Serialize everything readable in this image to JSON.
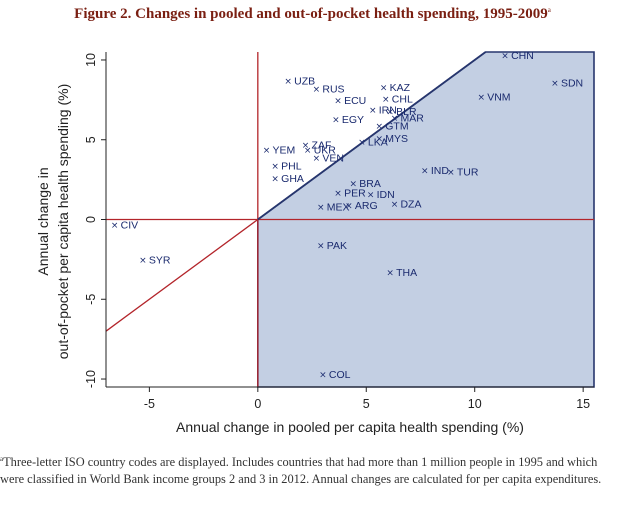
{
  "figure": {
    "title": "Figure 2. Changes in pooled and out-of-pocket health spending, 1995-2009",
    "title_marker": "a"
  },
  "footnote": {
    "marker": "a",
    "text": "Three-letter ISO country codes are displayed. Includes countries that had more than 1 million people in 1995 and which were classified in World Bank income groups 2 and 3 in 2012. Annual changes are calculated for per capita expenditures."
  },
  "colors": {
    "reference_lines": "#b3242a",
    "shaded_region_fill": "#c3cfe3",
    "shaded_region_stroke": "#27366e",
    "points": "#1a2a6e"
  },
  "chart_data": {
    "type": "scatter",
    "xlabel": "Annual change in pooled per capita health spending (%)",
    "ylabel_lines": [
      "Annual change in",
      "out-of-pocket per capita health spending (%)"
    ],
    "xlim": [
      -7,
      15.5
    ],
    "ylim": [
      -10.5,
      10.5
    ],
    "xticks": [
      -5,
      0,
      5,
      10,
      15
    ],
    "yticks": [
      -10,
      -5,
      0,
      5,
      10
    ],
    "reference_lines": {
      "x": 0,
      "y": 0,
      "diagonal": "y = x"
    },
    "shaded_region": "x >= 0 and y <= x",
    "grid": false,
    "legend": "none",
    "points": [
      {
        "label": "CHN",
        "x": 11.4,
        "y": 10.3
      },
      {
        "label": "SDN",
        "x": 13.7,
        "y": 8.6
      },
      {
        "label": "UZB",
        "x": 1.4,
        "y": 8.7
      },
      {
        "label": "RUS",
        "x": 2.7,
        "y": 8.2
      },
      {
        "label": "KAZ",
        "x": 5.8,
        "y": 8.3
      },
      {
        "label": "ECU",
        "x": 3.7,
        "y": 7.5
      },
      {
        "label": "CHL",
        "x": 5.9,
        "y": 7.6
      },
      {
        "label": "IRN",
        "x": 5.3,
        "y": 6.9
      },
      {
        "label": "BLR",
        "x": 6.1,
        "y": 6.8
      },
      {
        "label": "VNM",
        "x": 10.3,
        "y": 7.7
      },
      {
        "label": "MAR",
        "x": 6.3,
        "y": 6.4
      },
      {
        "label": "EGY",
        "x": 3.6,
        "y": 6.3
      },
      {
        "label": "GTM",
        "x": 5.6,
        "y": 5.9
      },
      {
        "label": "MYS",
        "x": 5.6,
        "y": 5.1
      },
      {
        "label": "LKA",
        "x": 4.8,
        "y": 4.9
      },
      {
        "label": "ZAF",
        "x": 2.2,
        "y": 4.7
      },
      {
        "label": "UKR",
        "x": 2.3,
        "y": 4.4
      },
      {
        "label": "YEM",
        "x": 0.4,
        "y": 4.4
      },
      {
        "label": "VEN",
        "x": 2.7,
        "y": 3.9
      },
      {
        "label": "PHL",
        "x": 0.8,
        "y": 3.4
      },
      {
        "label": "GHA",
        "x": 0.8,
        "y": 2.6
      },
      {
        "label": "IND",
        "x": 7.7,
        "y": 3.1
      },
      {
        "label": "TUR",
        "x": 8.9,
        "y": 3.0
      },
      {
        "label": "BRA",
        "x": 4.4,
        "y": 2.3
      },
      {
        "label": "PER",
        "x": 3.7,
        "y": 1.7
      },
      {
        "label": "IDN",
        "x": 5.2,
        "y": 1.6
      },
      {
        "label": "DZA",
        "x": 6.3,
        "y": 1.0
      },
      {
        "label": "MEX",
        "x": 2.9,
        "y": 0.8
      },
      {
        "label": "ARG",
        "x": 4.2,
        "y": 0.9
      },
      {
        "label": "CIV",
        "x": -6.6,
        "y": -0.3
      },
      {
        "label": "SYR",
        "x": -5.3,
        "y": -2.5
      },
      {
        "label": "PAK",
        "x": 2.9,
        "y": -1.6
      },
      {
        "label": "THA",
        "x": 6.1,
        "y": -3.3
      },
      {
        "label": "COL",
        "x": 3.0,
        "y": -9.7
      }
    ]
  }
}
